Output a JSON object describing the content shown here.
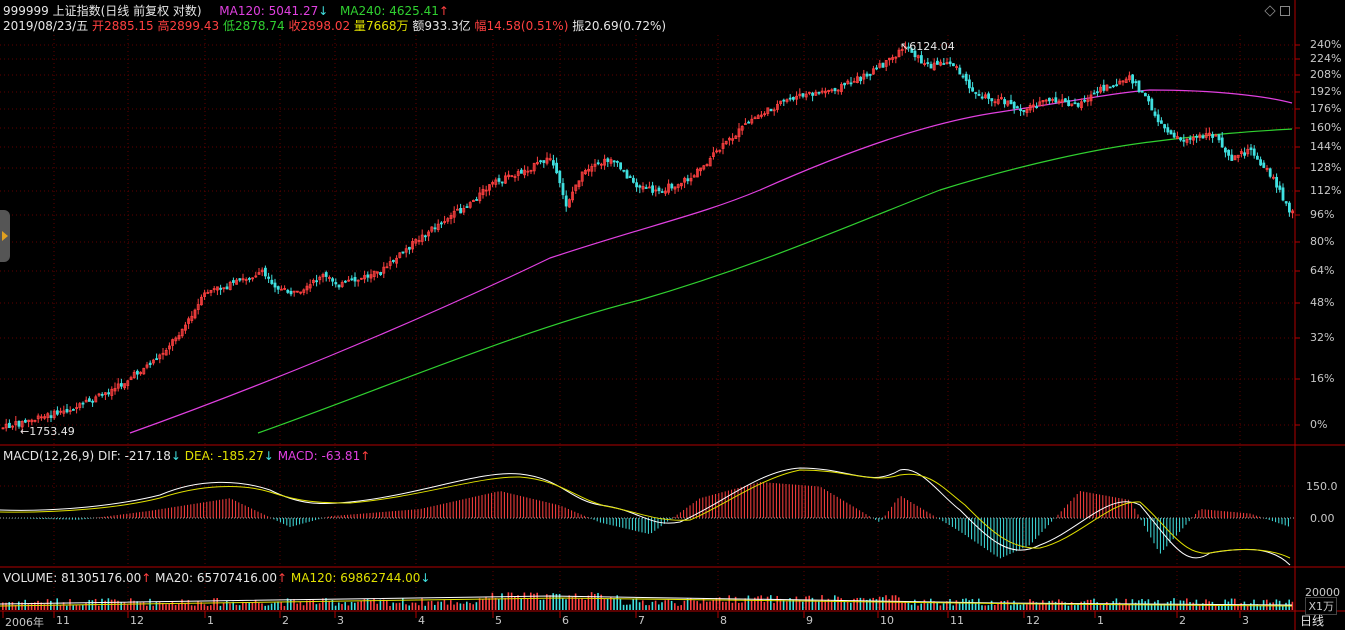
{
  "header": {
    "code_name": "999999 上证指数(日线 前复权 对数)",
    "ma120_label": "MA120: 5041.27",
    "ma120_arrow": "↓",
    "ma240_label": "MA240: 4625.41",
    "ma240_arrow": "↑",
    "date": "2019/08/23/五",
    "open_label": "开",
    "open_value": "2885.15",
    "high_label": "高",
    "high_value": "2899.43",
    "low_label": "低",
    "low_value": "2878.74",
    "close_label": "收",
    "close_value": "2898.02",
    "volume_label": "量",
    "volume_value": "7668万",
    "amount_label": "额",
    "amount_value": "933.3亿",
    "change_label": "幅",
    "change_value": "14.58(0.51%)",
    "amp_label": "振",
    "amp_value": "20.69(0.72%)"
  },
  "price_panel": {
    "y_ticks": [
      "240%",
      "224%",
      "208%",
      "192%",
      "176%",
      "160%",
      "144%",
      "128%",
      "112%",
      "96%",
      "80%",
      "64%",
      "48%",
      "32%",
      "16%",
      "0%"
    ],
    "high_annotation": "6124.04",
    "low_annotation": "1753.49"
  },
  "macd_panel": {
    "label": "MACD(12,26,9)",
    "dif_label": "DIF: -217.18",
    "dif_arrow": "↓",
    "dea_label": "DEA: -185.27",
    "dea_arrow": "↓",
    "macd_label": "MACD: -63.81",
    "macd_arrow": "↑",
    "y_ticks": [
      "150.0",
      "0.00"
    ]
  },
  "volume_panel": {
    "volume_label": "VOLUME: 81305176.00",
    "volume_arrow": "↑",
    "ma20_label": "MA20: 65707416.00",
    "ma20_arrow": "↑",
    "ma120_label": "MA120: 69862744.00",
    "ma120_arrow": "↓",
    "y_tick": "20000",
    "unit": "X1万"
  },
  "x_axis": {
    "labels": [
      "2006年",
      "11",
      "12",
      "1",
      "2",
      "3",
      "4",
      "5",
      "6",
      "7",
      "8",
      "9",
      "10",
      "11",
      "12",
      "1",
      "2",
      "3"
    ],
    "period": "日线"
  },
  "colors": {
    "up": "#ff4040",
    "down": "#40e0e0",
    "ma120": "#e040e0",
    "ma240": "#30d030",
    "dif": "#ffffff",
    "dea": "#e0e000",
    "grid": "#7a0000",
    "background": "#000000"
  }
}
